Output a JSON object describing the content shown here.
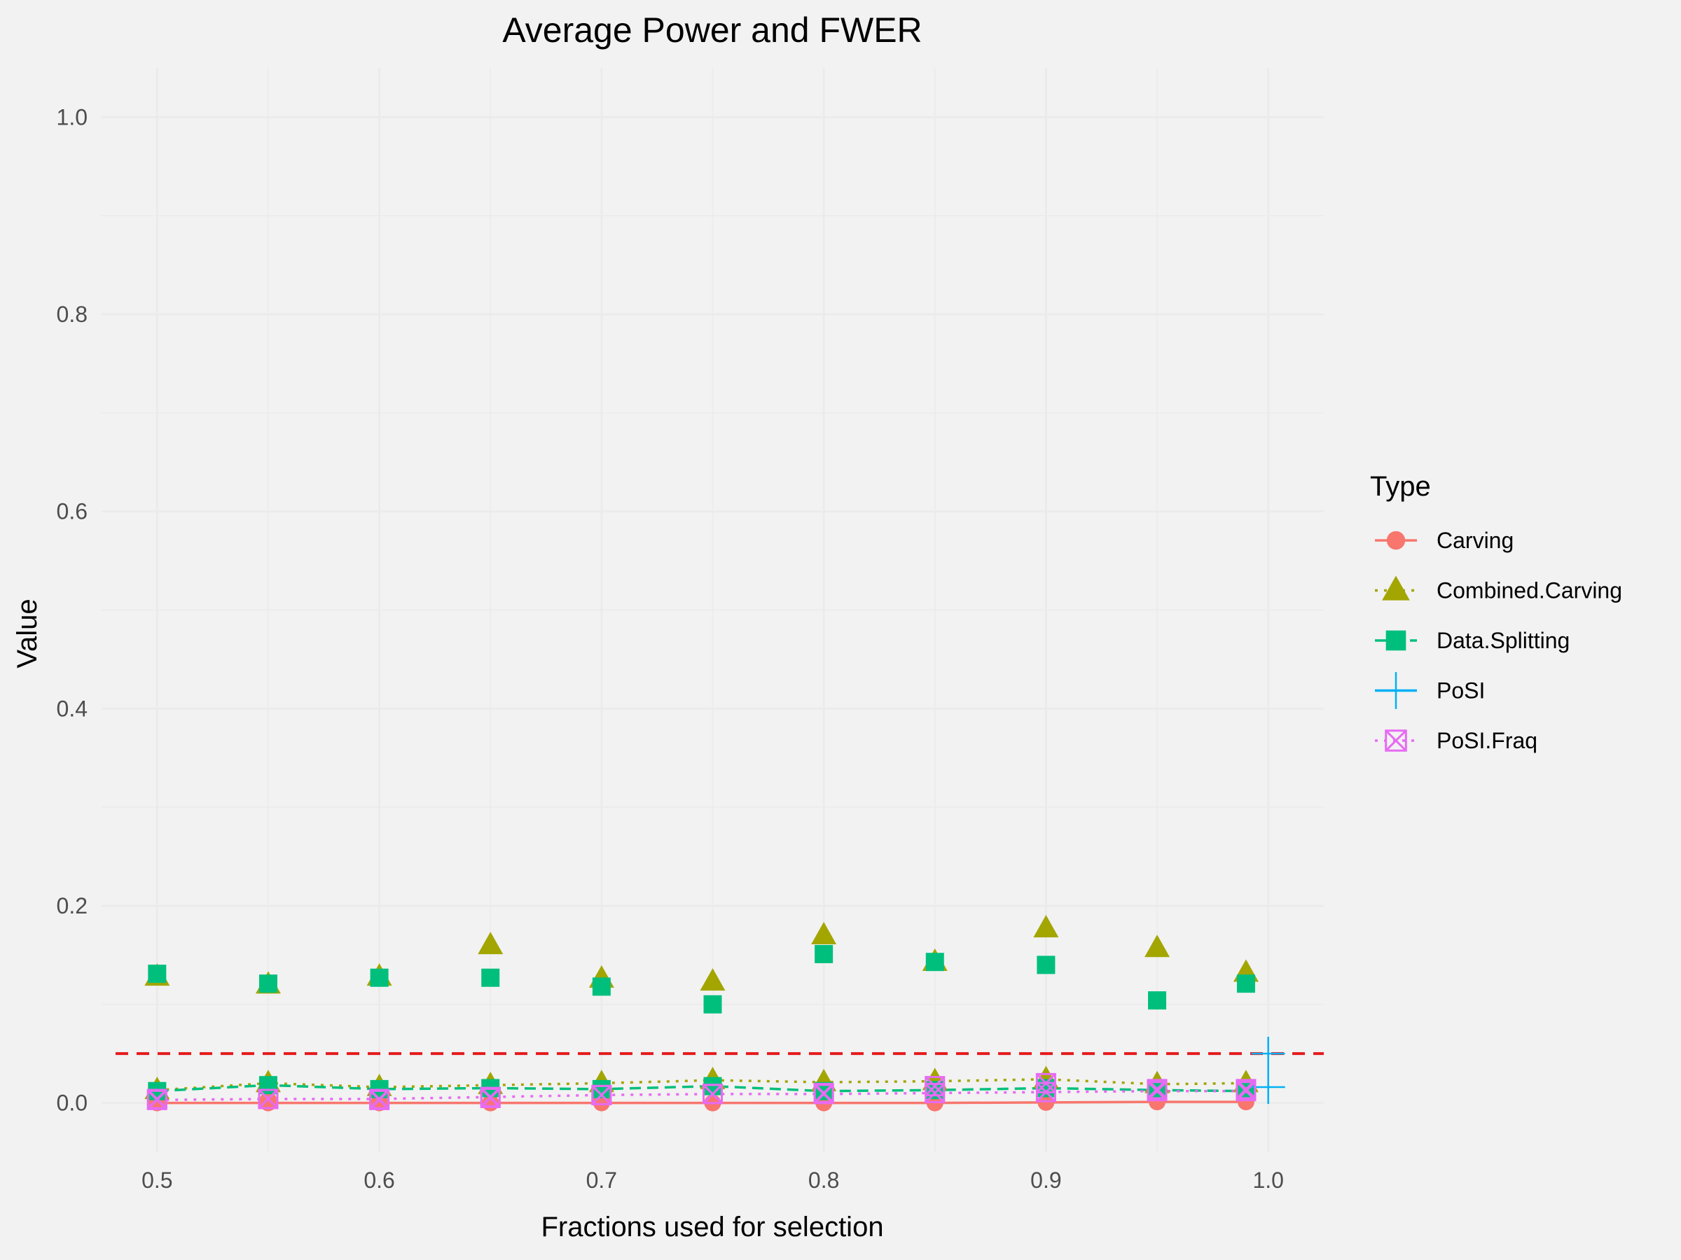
{
  "chart_data": {
    "type": "line",
    "title": "Average Power and FWER",
    "xlabel": "Fractions used for selection",
    "ylabel": "Value",
    "xlim": [
      0.475,
      1.025
    ],
    "ylim": [
      -0.05,
      1.05
    ],
    "x_ticks": [
      0.5,
      0.6,
      0.7,
      0.8,
      0.9,
      1.0
    ],
    "x_tick_labels": [
      "0.5",
      "0.6",
      "0.7",
      "0.8",
      "0.9",
      "1.0"
    ],
    "y_ticks": [
      0.0,
      0.2,
      0.4,
      0.6,
      0.8,
      1.0
    ],
    "y_tick_labels": [
      "0.0",
      "0.2",
      "0.4",
      "0.6",
      "0.8",
      "1.0"
    ],
    "grid": true,
    "reference_line": {
      "y": 0.05,
      "color": "#e41a1c",
      "style": "dashed"
    },
    "legend": {
      "title": "Type",
      "position": "right"
    },
    "x": [
      0.5,
      0.55,
      0.6,
      0.65,
      0.7,
      0.75,
      0.8,
      0.85,
      0.9,
      0.95,
      0.99
    ],
    "series": [
      {
        "name": "Carving",
        "color": "#F8766D",
        "shape": "circle",
        "line": "solid",
        "fwer": [
          0.0,
          0.0,
          0.0,
          0.0,
          0.0,
          0.0,
          0.0,
          0.0,
          0.0005,
          0.001,
          0.001
        ],
        "power": [
          0.001,
          0.003,
          0.001,
          0.0,
          0.004,
          0.0,
          0.003,
          0.0,
          0.011,
          0.014,
          0.01
        ]
      },
      {
        "name": "Combined.Carving",
        "color": "#A3A500",
        "shape": "triangle",
        "line": "dotted",
        "fwer": [
          0.013,
          0.02,
          0.016,
          0.018,
          0.02,
          0.023,
          0.021,
          0.022,
          0.024,
          0.019,
          0.02
        ],
        "power": [
          0.128,
          0.12,
          0.128,
          0.16,
          0.126,
          0.123,
          0.17,
          0.143,
          0.177,
          0.157,
          0.132
        ]
      },
      {
        "name": "Data.Splitting",
        "color": "#00BF7D",
        "shape": "square",
        "line": "dashed",
        "fwer": [
          0.012,
          0.018,
          0.014,
          0.015,
          0.014,
          0.017,
          0.012,
          0.013,
          0.015,
          0.013,
          0.012
        ],
        "power": [
          0.131,
          0.121,
          0.127,
          0.127,
          0.118,
          0.1,
          0.151,
          0.143,
          0.14,
          0.104,
          0.121
        ]
      },
      {
        "name": "PoSI",
        "color": "#00B0F6",
        "shape": "plus",
        "line": "solid",
        "fwer": [
          null,
          null,
          null,
          null,
          null,
          null,
          null,
          null,
          null,
          null,
          null
        ],
        "power": [
          null,
          null,
          null,
          null,
          null,
          null,
          null,
          null,
          null,
          null,
          null
        ],
        "x_extra": [
          1.0
        ],
        "fwer_extra": [
          0.016
        ],
        "power_extra": [
          0.05
        ]
      },
      {
        "name": "PoSI.Fraq",
        "color": "#E76BF3",
        "shape": "square-x",
        "line": "dotted",
        "fwer": [
          0.003,
          0.004,
          0.004,
          0.006,
          0.008,
          0.009,
          0.009,
          0.01,
          0.011,
          0.012,
          0.012
        ],
        "power": [
          0.004,
          0.004,
          0.003,
          0.005,
          0.008,
          0.009,
          0.01,
          0.017,
          0.02,
          0.014,
          0.014
        ]
      }
    ]
  }
}
